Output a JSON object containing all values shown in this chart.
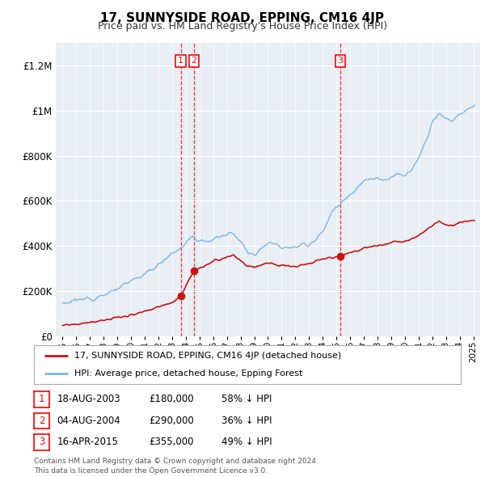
{
  "title": "17, SUNNYSIDE ROAD, EPPING, CM16 4JP",
  "subtitle": "Price paid vs. HM Land Registry's House Price Index (HPI)",
  "hpi_label": "HPI: Average price, detached house, Epping Forest",
  "property_label": "17, SUNNYSIDE ROAD, EPPING, CM16 4JP (detached house)",
  "footer": "Contains HM Land Registry data © Crown copyright and database right 2024.\nThis data is licensed under the Open Government Licence v3.0.",
  "sale_dates_num": [
    2003.63,
    2004.59,
    2015.29
  ],
  "sale_prices": [
    180000,
    290000,
    355000
  ],
  "sale_labels": [
    "1",
    "2",
    "3"
  ],
  "sale_info": [
    [
      "1",
      "18-AUG-2003",
      "£180,000",
      "58% ↓ HPI"
    ],
    [
      "2",
      "04-AUG-2004",
      "£290,000",
      "36% ↓ HPI"
    ],
    [
      "3",
      "16-APR-2015",
      "£355,000",
      "49% ↓ HPI"
    ]
  ],
  "hpi_color": "#7ab8e8",
  "property_color": "#cc1111",
  "ylim": [
    0,
    1300000
  ],
  "yticks": [
    0,
    200000,
    400000,
    600000,
    800000,
    1000000,
    1200000
  ],
  "ytick_labels": [
    "£0",
    "£200K",
    "£400K",
    "£600K",
    "£800K",
    "£1M",
    "£1.2M"
  ],
  "xmin": 1994.5,
  "xmax": 2025.5,
  "fig_bg": "#ffffff",
  "plot_bg": "#e8eef4"
}
